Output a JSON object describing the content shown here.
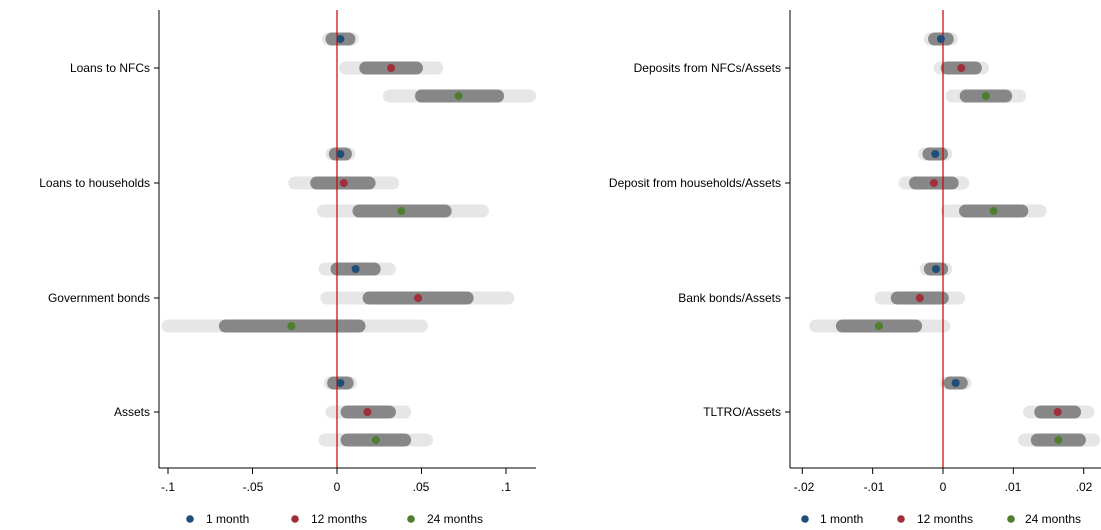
{
  "chart_data": [
    {
      "type": "coefficient-plot",
      "xlim": [
        -0.1,
        0.12
      ],
      "x_ticks": [
        -0.1,
        -0.05,
        0,
        0.05,
        0.1
      ],
      "x_tick_labels": [
        "-.1",
        "-.05",
        "0",
        ".05",
        ".1"
      ],
      "reference_line": 0,
      "categories": [
        "Loans to NFCs",
        "Loans to households",
        "Government bonds",
        "Assets"
      ],
      "series": [
        {
          "name": "1 month",
          "estimates": [
            0.002,
            0.002,
            0.011,
            0.002
          ],
          "ci90": [
            [
              -0.003,
              0.007
            ],
            [
              -0.001,
              0.005
            ],
            [
              0.0,
              0.022
            ],
            [
              -0.002,
              0.006
            ]
          ],
          "ci95": [
            [
              -0.005,
              0.009
            ],
            [
              -0.003,
              0.007
            ],
            [
              -0.007,
              0.031
            ],
            [
              -0.004,
              0.008
            ]
          ]
        },
        {
          "name": "12 months",
          "estimates": [
            0.032,
            0.004,
            0.048,
            0.018
          ],
          "ci90": [
            [
              0.017,
              0.047
            ],
            [
              -0.012,
              0.019
            ],
            [
              0.019,
              0.077
            ],
            [
              0.006,
              0.031
            ]
          ],
          "ci95": [
            [
              0.005,
              0.059
            ],
            [
              -0.025,
              0.033
            ],
            [
              -0.006,
              0.101
            ],
            [
              -0.003,
              0.04
            ]
          ]
        },
        {
          "name": "24 months",
          "estimates": [
            0.072,
            0.038,
            -0.027,
            0.023
          ],
          "ci90": [
            [
              0.05,
              0.095
            ],
            [
              0.013,
              0.064
            ],
            [
              -0.066,
              0.013
            ],
            [
              0.006,
              0.04
            ]
          ],
          "ci95": [
            [
              0.031,
              0.114
            ],
            [
              -0.008,
              0.086
            ],
            [
              -0.1,
              0.05
            ],
            [
              -0.007,
              0.053
            ]
          ]
        }
      ]
    },
    {
      "type": "coefficient-plot",
      "xlim": [
        -0.021,
        0.022
      ],
      "x_ticks": [
        -0.02,
        -0.01,
        0,
        0.01,
        0.02
      ],
      "x_tick_labels": [
        "-.02",
        "-.01",
        "0",
        ".01",
        ".02"
      ],
      "reference_line": 0,
      "categories": [
        "Deposits from NFCs/Assets",
        "Deposit from households/Assets",
        "Bank bonds/Assets",
        "TLTRO/Assets"
      ],
      "series": [
        {
          "name": "1 month",
          "estimates": [
            -0.0003,
            -0.0011,
            -0.001,
            0.0018
          ],
          "ci90": [
            [
              -0.0012,
              0.0006
            ],
            [
              -0.002,
              -0.0002
            ],
            [
              -0.0018,
              -0.0002
            ],
            [
              0.001,
              0.0026
            ]
          ],
          "ci95": [
            [
              -0.0018,
              0.0012
            ],
            [
              -0.0026,
              0.0004
            ],
            [
              -0.0024,
              0.0004
            ],
            [
              0.0005,
              0.0031
            ]
          ]
        },
        {
          "name": "12 months",
          "estimates": [
            0.0026,
            -0.0013,
            -0.0033,
            0.0163
          ],
          "ci90": [
            [
              0.0006,
              0.0046
            ],
            [
              -0.0039,
              0.0013
            ],
            [
              -0.0065,
              -0.0001
            ],
            [
              0.0139,
              0.0187
            ]
          ],
          "ci95": [
            [
              -0.0004,
              0.0056
            ],
            [
              -0.0054,
              0.0028
            ],
            [
              -0.0088,
              0.0022
            ],
            [
              0.0123,
              0.0206
            ]
          ]
        },
        {
          "name": "24 months",
          "estimates": [
            0.0061,
            0.0072,
            -0.0091,
            0.0164
          ],
          "ci90": [
            [
              0.0033,
              0.0089
            ],
            [
              0.0032,
              0.0112
            ],
            [
              -0.0143,
              -0.0039
            ],
            [
              0.0134,
              0.0194
            ]
          ],
          "ci95": [
            [
              0.0013,
              0.0109
            ],
            [
              0.0006,
              0.0138
            ],
            [
              -0.0181,
              0.0001
            ],
            [
              0.0116,
              0.0214
            ]
          ]
        }
      ]
    }
  ],
  "legend": [
    {
      "label": "1 month",
      "color": "#1f4e79"
    },
    {
      "label": "12 months",
      "color": "#9e2f3b"
    },
    {
      "label": "24 months",
      "color": "#4f7f2e"
    }
  ],
  "colors": {
    "ci95": "#e6e6e6",
    "ci90": "#878787",
    "reference_line": "#cc0000",
    "axis": "#000000"
  }
}
